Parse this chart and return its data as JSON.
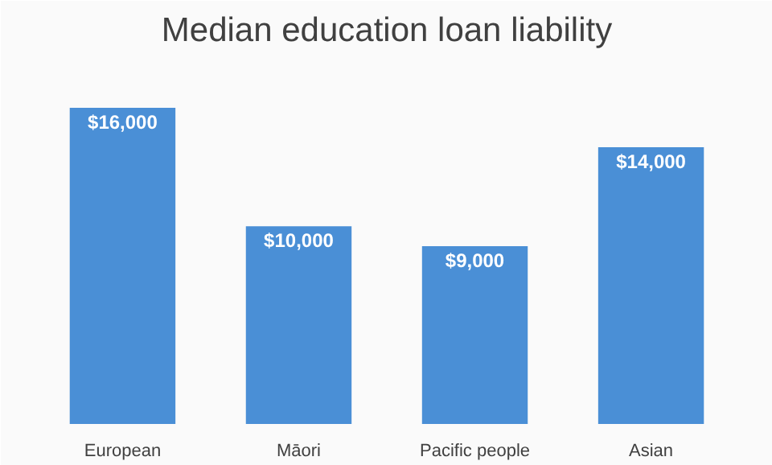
{
  "chart_data": {
    "type": "bar",
    "title": "Median education loan liability",
    "categories": [
      "European",
      "Māori",
      "Pacific people",
      "Asian"
    ],
    "values": [
      16000,
      10000,
      9000,
      14000
    ],
    "value_labels": [
      "$16,000",
      "$10,000",
      "$9,000",
      "$14,000"
    ],
    "color": "#4a8fd6",
    "grid": false
  }
}
